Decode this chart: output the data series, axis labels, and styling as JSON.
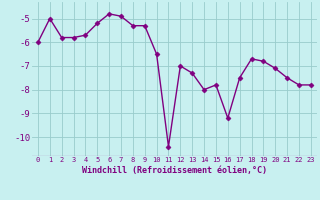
{
  "x": [
    0,
    1,
    2,
    3,
    4,
    5,
    6,
    7,
    8,
    9,
    10,
    11,
    12,
    13,
    14,
    15,
    16,
    17,
    18,
    19,
    20,
    21,
    22,
    23
  ],
  "y": [
    -6.0,
    -5.0,
    -5.8,
    -5.8,
    -5.7,
    -5.2,
    -4.8,
    -4.9,
    -5.3,
    -5.3,
    -6.5,
    -10.4,
    -7.0,
    -7.3,
    -8.0,
    -7.8,
    -9.2,
    -7.5,
    -6.7,
    -6.8,
    -7.1,
    -7.5,
    -7.8,
    -7.8
  ],
  "line_color": "#800080",
  "marker": "D",
  "marker_size": 2.5,
  "line_width": 1.0,
  "bg_color": "#c8f0f0",
  "grid_color": "#99cccc",
  "xlabel": "Windchill (Refroidissement éolien,°C)",
  "xlabel_color": "#800080",
  "tick_color": "#800080",
  "xlim": [
    -0.5,
    23.5
  ],
  "ylim": [
    -10.8,
    -4.3
  ],
  "yticks": [
    -10,
    -9,
    -8,
    -7,
    -6,
    -5
  ],
  "xtick_labels": [
    "0",
    "1",
    "2",
    "3",
    "4",
    "5",
    "6",
    "7",
    "8",
    "9",
    "10",
    "11",
    "12",
    "13",
    "14",
    "15",
    "16",
    "17",
    "18",
    "19",
    "20",
    "21",
    "22",
    "23"
  ]
}
